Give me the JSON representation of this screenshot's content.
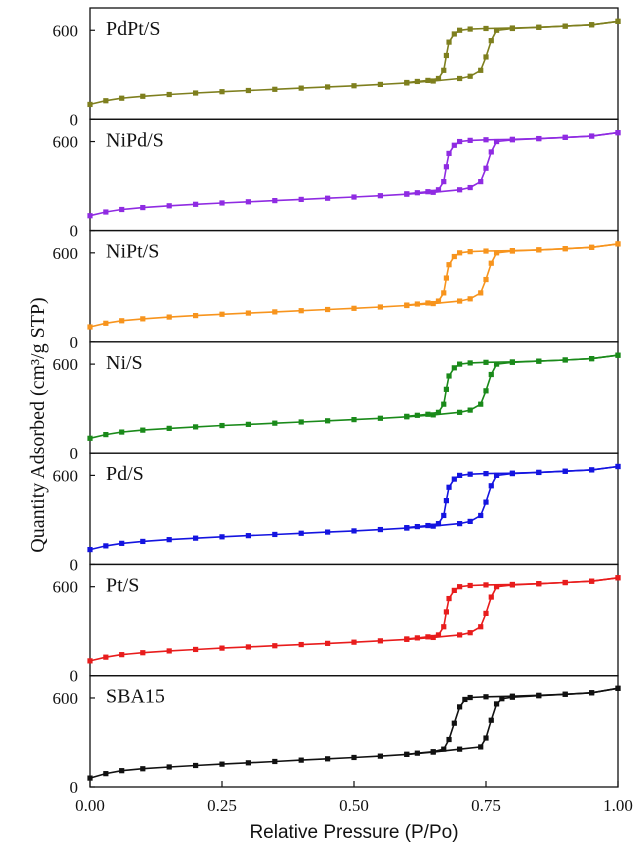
{
  "chart_data": {
    "type": "line",
    "title": "",
    "xlabel": "Relative Pressure (P/Po)",
    "ylabel": "Quantity Adsorbed (cm³/g STP)",
    "xlim": [
      0.0,
      1.0
    ],
    "ylim": [
      0,
      750
    ],
    "x_ticks": [
      "0.00",
      "0.25",
      "0.50",
      "0.75",
      "1.00"
    ],
    "y_ticks": [
      "0",
      "600"
    ],
    "grid": false,
    "legend": "none",
    "panels": [
      {
        "name": "PdPt/S",
        "color": "#7e7f1e",
        "adsorption": [
          [
            0.0,
            100
          ],
          [
            0.03,
            125
          ],
          [
            0.06,
            142
          ],
          [
            0.1,
            155
          ],
          [
            0.15,
            167
          ],
          [
            0.2,
            177
          ],
          [
            0.25,
            186
          ],
          [
            0.3,
            194
          ],
          [
            0.35,
            202
          ],
          [
            0.4,
            210
          ],
          [
            0.45,
            218
          ],
          [
            0.5,
            226
          ],
          [
            0.55,
            235
          ],
          [
            0.6,
            245
          ],
          [
            0.65,
            258
          ],
          [
            0.7,
            275
          ],
          [
            0.72,
            290
          ],
          [
            0.74,
            330
          ],
          [
            0.75,
            420
          ],
          [
            0.76,
            530
          ],
          [
            0.77,
            600
          ],
          [
            0.8,
            612
          ],
          [
            0.85,
            620
          ],
          [
            0.9,
            628
          ],
          [
            0.95,
            637
          ],
          [
            1.0,
            660
          ]
        ],
        "desorption": [
          [
            1.0,
            660
          ],
          [
            0.95,
            637
          ],
          [
            0.9,
            628
          ],
          [
            0.85,
            620
          ],
          [
            0.8,
            615
          ],
          [
            0.75,
            612
          ],
          [
            0.72,
            608
          ],
          [
            0.7,
            600
          ],
          [
            0.69,
            575
          ],
          [
            0.68,
            520
          ],
          [
            0.675,
            430
          ],
          [
            0.67,
            330
          ],
          [
            0.66,
            275
          ],
          [
            0.64,
            262
          ],
          [
            0.62,
            255
          ],
          [
            0.6,
            248
          ]
        ]
      },
      {
        "name": "NiPd/S",
        "color": "#8f2be2",
        "adsorption": [
          [
            0.0,
            100
          ],
          [
            0.03,
            125
          ],
          [
            0.06,
            142
          ],
          [
            0.1,
            155
          ],
          [
            0.15,
            167
          ],
          [
            0.2,
            177
          ],
          [
            0.25,
            186
          ],
          [
            0.3,
            194
          ],
          [
            0.35,
            202
          ],
          [
            0.4,
            210
          ],
          [
            0.45,
            218
          ],
          [
            0.5,
            226
          ],
          [
            0.55,
            235
          ],
          [
            0.6,
            245
          ],
          [
            0.65,
            258
          ],
          [
            0.7,
            275
          ],
          [
            0.72,
            290
          ],
          [
            0.74,
            330
          ],
          [
            0.75,
            420
          ],
          [
            0.76,
            530
          ],
          [
            0.77,
            600
          ],
          [
            0.8,
            612
          ],
          [
            0.85,
            620
          ],
          [
            0.9,
            628
          ],
          [
            0.95,
            637
          ],
          [
            1.0,
            660
          ]
        ],
        "desorption": [
          [
            1.0,
            660
          ],
          [
            0.95,
            637
          ],
          [
            0.9,
            628
          ],
          [
            0.85,
            620
          ],
          [
            0.8,
            615
          ],
          [
            0.75,
            612
          ],
          [
            0.72,
            608
          ],
          [
            0.7,
            600
          ],
          [
            0.69,
            575
          ],
          [
            0.68,
            520
          ],
          [
            0.675,
            430
          ],
          [
            0.67,
            330
          ],
          [
            0.66,
            275
          ],
          [
            0.64,
            262
          ],
          [
            0.62,
            255
          ],
          [
            0.6,
            248
          ]
        ]
      },
      {
        "name": "NiPt/S",
        "color": "#f7941d",
        "adsorption": [
          [
            0.0,
            100
          ],
          [
            0.03,
            125
          ],
          [
            0.06,
            142
          ],
          [
            0.1,
            155
          ],
          [
            0.15,
            167
          ],
          [
            0.2,
            177
          ],
          [
            0.25,
            186
          ],
          [
            0.3,
            194
          ],
          [
            0.35,
            202
          ],
          [
            0.4,
            210
          ],
          [
            0.45,
            218
          ],
          [
            0.5,
            226
          ],
          [
            0.55,
            235
          ],
          [
            0.6,
            245
          ],
          [
            0.65,
            258
          ],
          [
            0.7,
            275
          ],
          [
            0.72,
            290
          ],
          [
            0.74,
            330
          ],
          [
            0.75,
            420
          ],
          [
            0.76,
            530
          ],
          [
            0.77,
            600
          ],
          [
            0.8,
            612
          ],
          [
            0.85,
            620
          ],
          [
            0.9,
            628
          ],
          [
            0.95,
            637
          ],
          [
            1.0,
            660
          ]
        ],
        "desorption": [
          [
            1.0,
            660
          ],
          [
            0.95,
            637
          ],
          [
            0.9,
            628
          ],
          [
            0.85,
            620
          ],
          [
            0.8,
            615
          ],
          [
            0.75,
            612
          ],
          [
            0.72,
            608
          ],
          [
            0.7,
            600
          ],
          [
            0.69,
            575
          ],
          [
            0.68,
            520
          ],
          [
            0.675,
            430
          ],
          [
            0.67,
            330
          ],
          [
            0.66,
            275
          ],
          [
            0.64,
            262
          ],
          [
            0.62,
            255
          ],
          [
            0.6,
            248
          ]
        ]
      },
      {
        "name": "Ni/S",
        "color": "#1a8a1a",
        "adsorption": [
          [
            0.0,
            100
          ],
          [
            0.03,
            125
          ],
          [
            0.06,
            142
          ],
          [
            0.1,
            155
          ],
          [
            0.15,
            167
          ],
          [
            0.2,
            177
          ],
          [
            0.25,
            186
          ],
          [
            0.3,
            194
          ],
          [
            0.35,
            202
          ],
          [
            0.4,
            210
          ],
          [
            0.45,
            218
          ],
          [
            0.5,
            226
          ],
          [
            0.55,
            235
          ],
          [
            0.6,
            245
          ],
          [
            0.65,
            258
          ],
          [
            0.7,
            275
          ],
          [
            0.72,
            290
          ],
          [
            0.74,
            330
          ],
          [
            0.75,
            420
          ],
          [
            0.76,
            530
          ],
          [
            0.77,
            600
          ],
          [
            0.8,
            612
          ],
          [
            0.85,
            620
          ],
          [
            0.9,
            628
          ],
          [
            0.95,
            637
          ],
          [
            1.0,
            660
          ]
        ],
        "desorption": [
          [
            1.0,
            660
          ],
          [
            0.95,
            637
          ],
          [
            0.9,
            628
          ],
          [
            0.85,
            620
          ],
          [
            0.8,
            615
          ],
          [
            0.75,
            612
          ],
          [
            0.72,
            608
          ],
          [
            0.7,
            600
          ],
          [
            0.69,
            575
          ],
          [
            0.68,
            520
          ],
          [
            0.675,
            430
          ],
          [
            0.67,
            330
          ],
          [
            0.66,
            275
          ],
          [
            0.64,
            262
          ],
          [
            0.62,
            255
          ],
          [
            0.6,
            248
          ]
        ]
      },
      {
        "name": "Pd/S",
        "color": "#1414e0",
        "adsorption": [
          [
            0.0,
            100
          ],
          [
            0.03,
            125
          ],
          [
            0.06,
            142
          ],
          [
            0.1,
            155
          ],
          [
            0.15,
            167
          ],
          [
            0.2,
            177
          ],
          [
            0.25,
            186
          ],
          [
            0.3,
            194
          ],
          [
            0.35,
            202
          ],
          [
            0.4,
            210
          ],
          [
            0.45,
            218
          ],
          [
            0.5,
            226
          ],
          [
            0.55,
            235
          ],
          [
            0.6,
            245
          ],
          [
            0.65,
            258
          ],
          [
            0.7,
            275
          ],
          [
            0.72,
            290
          ],
          [
            0.74,
            330
          ],
          [
            0.75,
            420
          ],
          [
            0.76,
            530
          ],
          [
            0.77,
            600
          ],
          [
            0.8,
            612
          ],
          [
            0.85,
            620
          ],
          [
            0.9,
            628
          ],
          [
            0.95,
            637
          ],
          [
            1.0,
            660
          ]
        ],
        "desorption": [
          [
            1.0,
            660
          ],
          [
            0.95,
            637
          ],
          [
            0.9,
            628
          ],
          [
            0.85,
            620
          ],
          [
            0.8,
            615
          ],
          [
            0.75,
            612
          ],
          [
            0.72,
            608
          ],
          [
            0.7,
            600
          ],
          [
            0.69,
            575
          ],
          [
            0.68,
            520
          ],
          [
            0.675,
            430
          ],
          [
            0.67,
            330
          ],
          [
            0.66,
            275
          ],
          [
            0.64,
            262
          ],
          [
            0.62,
            255
          ],
          [
            0.6,
            248
          ]
        ]
      },
      {
        "name": "Pt/S",
        "color": "#e81c1c",
        "adsorption": [
          [
            0.0,
            100
          ],
          [
            0.03,
            125
          ],
          [
            0.06,
            142
          ],
          [
            0.1,
            155
          ],
          [
            0.15,
            167
          ],
          [
            0.2,
            177
          ],
          [
            0.25,
            186
          ],
          [
            0.3,
            194
          ],
          [
            0.35,
            202
          ],
          [
            0.4,
            210
          ],
          [
            0.45,
            218
          ],
          [
            0.5,
            226
          ],
          [
            0.55,
            235
          ],
          [
            0.6,
            245
          ],
          [
            0.65,
            258
          ],
          [
            0.7,
            275
          ],
          [
            0.72,
            290
          ],
          [
            0.74,
            330
          ],
          [
            0.75,
            420
          ],
          [
            0.76,
            530
          ],
          [
            0.77,
            600
          ],
          [
            0.8,
            612
          ],
          [
            0.85,
            620
          ],
          [
            0.9,
            628
          ],
          [
            0.95,
            637
          ],
          [
            1.0,
            660
          ]
        ],
        "desorption": [
          [
            1.0,
            660
          ],
          [
            0.95,
            637
          ],
          [
            0.9,
            628
          ],
          [
            0.85,
            620
          ],
          [
            0.8,
            615
          ],
          [
            0.75,
            612
          ],
          [
            0.72,
            608
          ],
          [
            0.7,
            600
          ],
          [
            0.69,
            575
          ],
          [
            0.68,
            520
          ],
          [
            0.675,
            430
          ],
          [
            0.67,
            330
          ],
          [
            0.66,
            275
          ],
          [
            0.64,
            262
          ],
          [
            0.62,
            255
          ],
          [
            0.6,
            248
          ]
        ]
      },
      {
        "name": "SBA15",
        "color": "#111111",
        "adsorption": [
          [
            0.0,
            60
          ],
          [
            0.03,
            90
          ],
          [
            0.06,
            110
          ],
          [
            0.1,
            123
          ],
          [
            0.15,
            135
          ],
          [
            0.2,
            145
          ],
          [
            0.25,
            154
          ],
          [
            0.3,
            163
          ],
          [
            0.35,
            172
          ],
          [
            0.4,
            181
          ],
          [
            0.45,
            190
          ],
          [
            0.5,
            199
          ],
          [
            0.55,
            208
          ],
          [
            0.6,
            220
          ],
          [
            0.65,
            235
          ],
          [
            0.7,
            255
          ],
          [
            0.74,
            270
          ],
          [
            0.75,
            330
          ],
          [
            0.76,
            450
          ],
          [
            0.77,
            560
          ],
          [
            0.78,
            595
          ],
          [
            0.8,
            605
          ],
          [
            0.85,
            615
          ],
          [
            0.9,
            625
          ],
          [
            0.95,
            635
          ],
          [
            1.0,
            665
          ]
        ],
        "desorption": [
          [
            1.0,
            665
          ],
          [
            0.95,
            635
          ],
          [
            0.9,
            625
          ],
          [
            0.85,
            618
          ],
          [
            0.8,
            612
          ],
          [
            0.75,
            608
          ],
          [
            0.72,
            603
          ],
          [
            0.71,
            590
          ],
          [
            0.7,
            540
          ],
          [
            0.69,
            430
          ],
          [
            0.68,
            320
          ],
          [
            0.67,
            255
          ],
          [
            0.65,
            238
          ],
          [
            0.62,
            228
          ],
          [
            0.6,
            220
          ]
        ]
      }
    ]
  }
}
